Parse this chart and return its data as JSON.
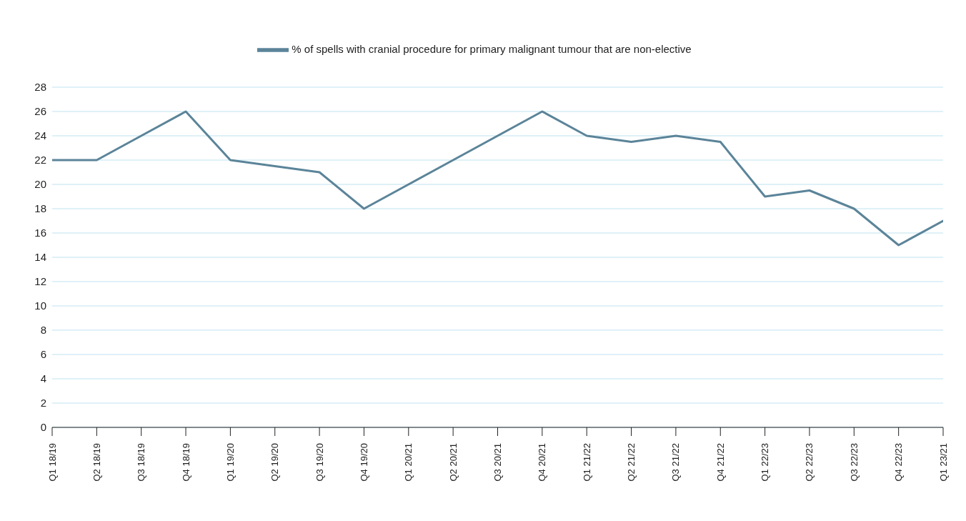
{
  "chart_data": {
    "type": "line",
    "categories": [
      "Q1 18/19",
      "Q2 18/19",
      "Q3 18/19",
      "Q4 18/19",
      "Q1 19/20",
      "Q2 19/20",
      "Q3 19/20",
      "Q4 19/20",
      "Q1 20/21",
      "Q2 20/21",
      "Q3 20/21",
      "Q4 20/21",
      "Q1 21/22",
      "Q2 21/22",
      "Q3 21/22",
      "Q4 21/22",
      "Q1 22/23",
      "Q2 22/23",
      "Q3 22/23",
      "Q4 22/23",
      "Q1 23/21"
    ],
    "series": [
      {
        "name": "% of spells with cranial procedure for primary malignant tumour that are non-elective",
        "color": "#5b8499",
        "values": [
          22,
          22,
          24,
          26,
          22,
          21.5,
          21,
          18,
          20,
          22,
          24,
          26,
          24,
          23.5,
          24,
          23.5,
          19,
          19.5,
          18,
          15,
          17
        ]
      }
    ],
    "ylim": [
      0,
      28
    ],
    "yticks": [
      0,
      2,
      4,
      6,
      8,
      10,
      12,
      14,
      16,
      18,
      20,
      22,
      24,
      26,
      28
    ],
    "grid": "y",
    "legend": "top",
    "marker": "none",
    "line_style": "solid"
  }
}
